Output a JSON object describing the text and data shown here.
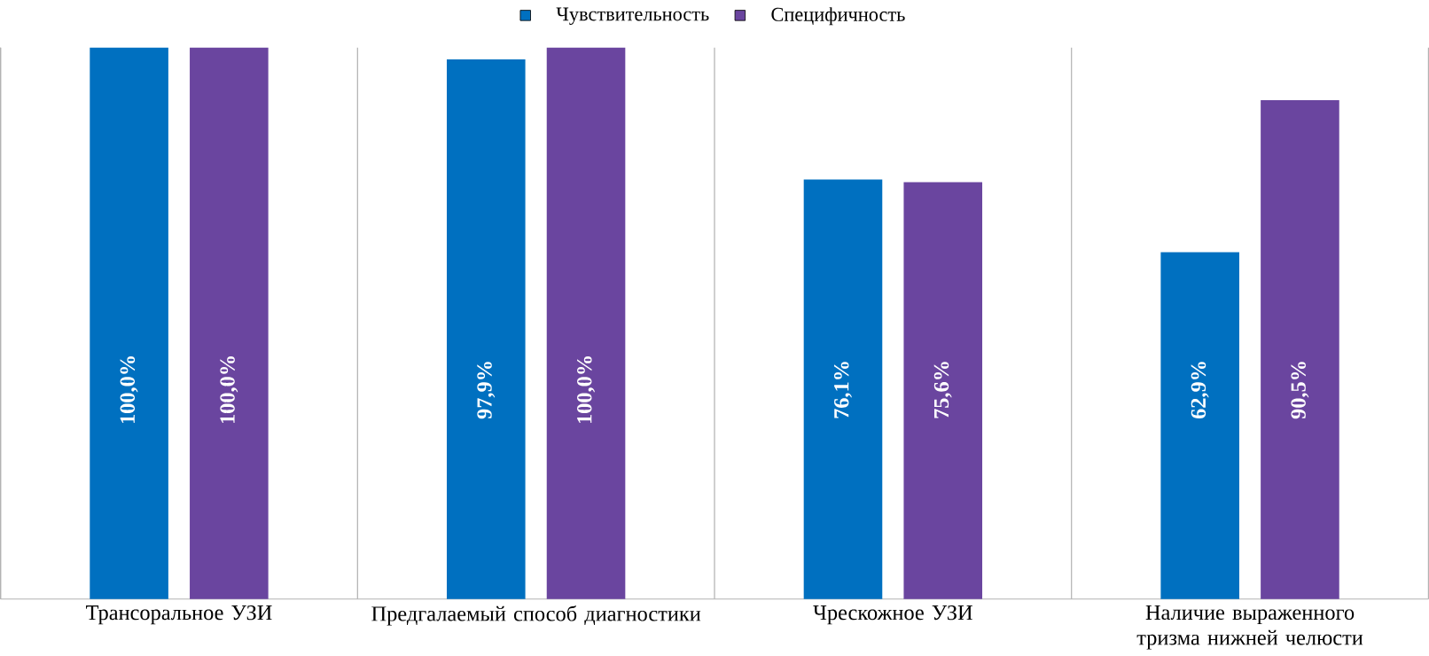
{
  "chart_data": {
    "type": "bar",
    "relative": false,
    "categories": [
      "Трансоральное УЗИ",
      "Предгалаемый способ диагностики",
      "Чрескожное УЗИ",
      "Наличие выраженного тризма нижней челюсти"
    ],
    "series": [
      {
        "name": "Чувствительность",
        "color": "#0070c0",
        "values": [
          100.0,
          97.9,
          76.1,
          62.9
        ],
        "value_labels": [
          "100,0%",
          "97,9%",
          "76,1%",
          "62,9%"
        ]
      },
      {
        "name": "Специфичность",
        "color": "#6a459f",
        "values": [
          100.0,
          100.0,
          75.6,
          90.5
        ],
        "value_labels": [
          "100,0%",
          "100,0%",
          "75,6%",
          "90,5%"
        ]
      }
    ],
    "grid": "x",
    "legend": "top"
  }
}
